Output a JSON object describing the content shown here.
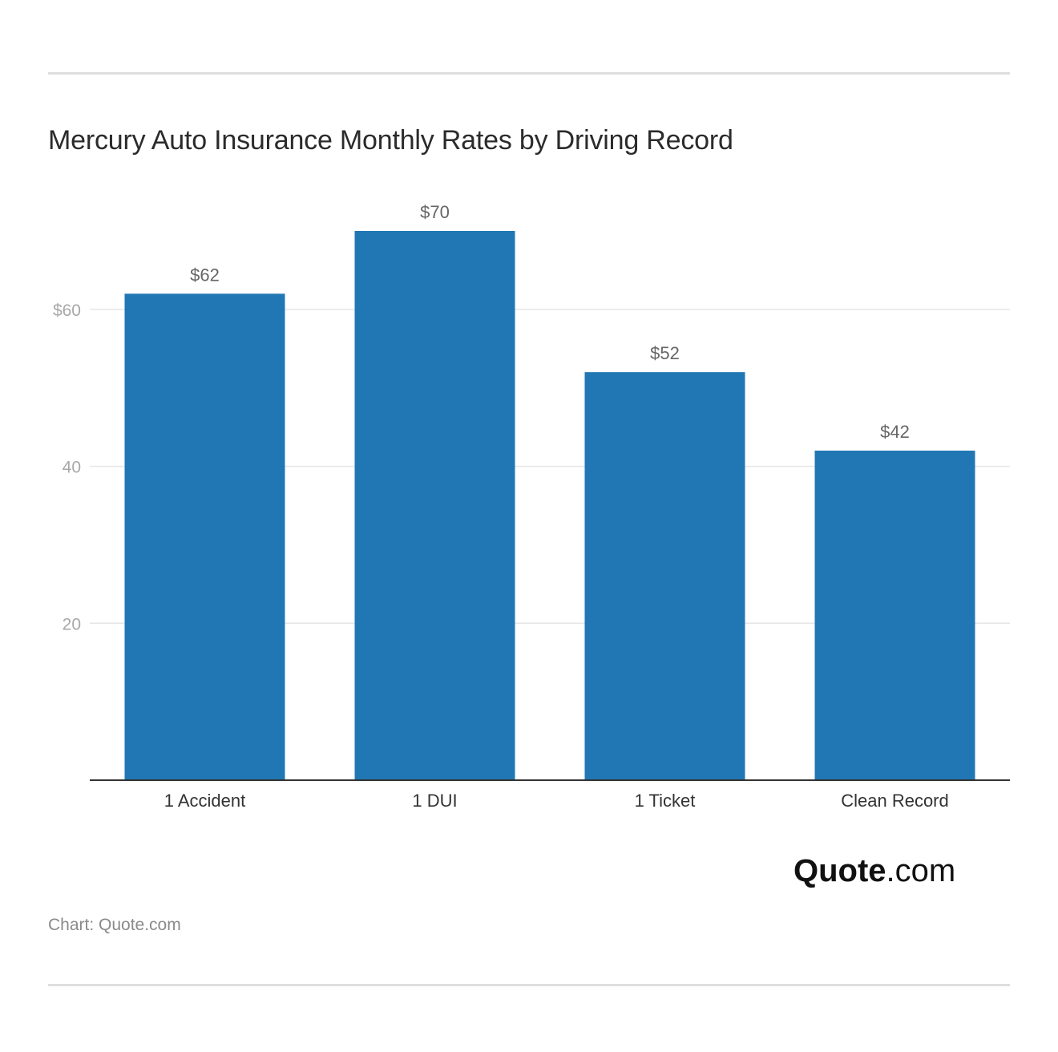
{
  "title": "Mercury Auto Insurance Monthly Rates by Driving Record",
  "source": "Chart: Quote.com",
  "brand": {
    "name": "Quote",
    "suffix": ".com"
  },
  "colors": {
    "bar": "#2077b4",
    "grid": "#e6e6e6",
    "axis": "#333333",
    "tick_text": "#a8a8a8",
    "label_text": "#333333",
    "value_text": "#666666"
  },
  "chart_data": {
    "type": "bar",
    "categories": [
      "1 Accident",
      "1 DUI",
      "1 Ticket",
      "Clean Record"
    ],
    "values": [
      62,
      70,
      52,
      42
    ],
    "value_labels": [
      "$62",
      "$70",
      "$52",
      "$42"
    ],
    "yticks": [
      20,
      40,
      60
    ],
    "ytick_labels": [
      "20",
      "40",
      "$60"
    ],
    "ylim": [
      0,
      70
    ],
    "grid": true,
    "title": "Mercury Auto Insurance Monthly Rates by Driving Record",
    "xlabel": "",
    "ylabel": ""
  }
}
